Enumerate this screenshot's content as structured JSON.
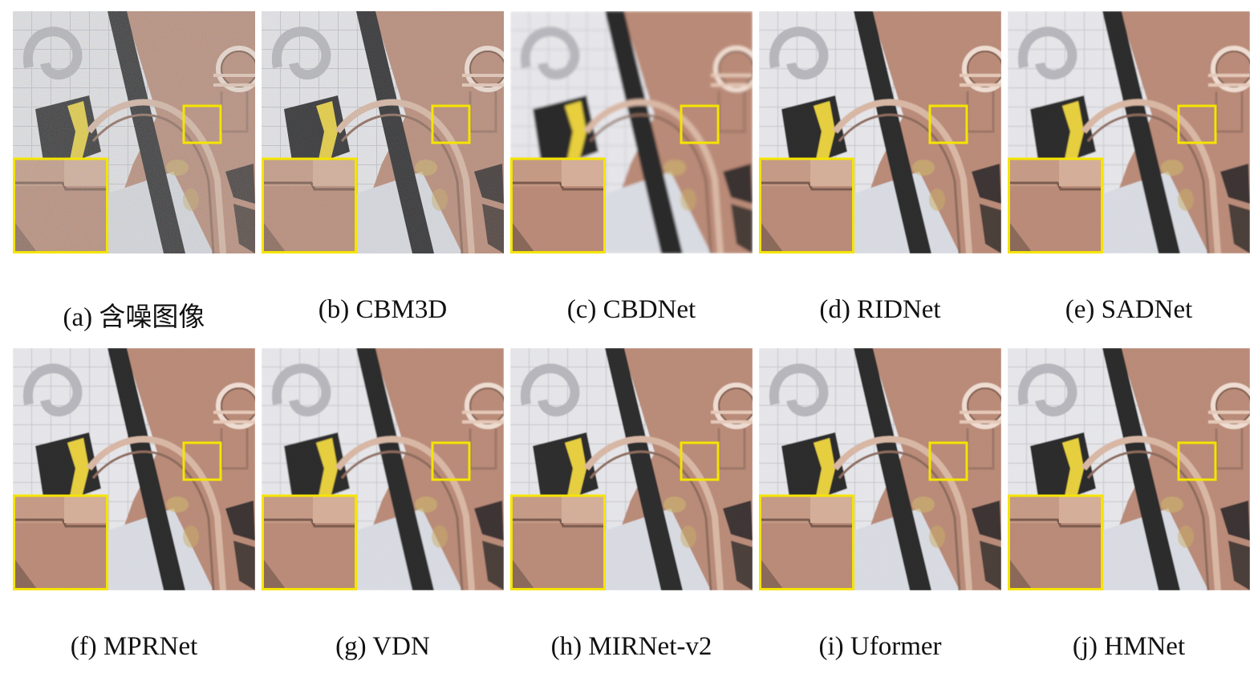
{
  "figure": {
    "panels": [
      {
        "label": "(a) 含噪图像",
        "noise": 0.55,
        "blur": 0
      },
      {
        "label": "(b) CBM3D",
        "noise": 0.38,
        "blur": 0
      },
      {
        "label": "(c) CBDNet",
        "noise": 0,
        "blur": 1.6
      },
      {
        "label": "(d) RIDNet",
        "noise": 0.05,
        "blur": 0.6
      },
      {
        "label": "(e) SADNet",
        "noise": 0.04,
        "blur": 0.7
      },
      {
        "label": "(f) MPRNet",
        "noise": 0.05,
        "blur": 0.6
      },
      {
        "label": "(g) VDN",
        "noise": 0.04,
        "blur": 0.8
      },
      {
        "label": "(h) MIRNet-v2",
        "noise": 0.06,
        "blur": 0.5
      },
      {
        "label": "(i) Uformer",
        "noise": 0.04,
        "blur": 0.5
      },
      {
        "label": "(j) HMNet",
        "noise": 0.03,
        "blur": 0.4
      }
    ],
    "colors": {
      "highlight_box": "#f5e400",
      "copper": "#b98a77",
      "tile_light": "#e6e6ea",
      "dark_strap": "#2a2a2c",
      "yellow_strap": "#e7cf3c"
    }
  }
}
